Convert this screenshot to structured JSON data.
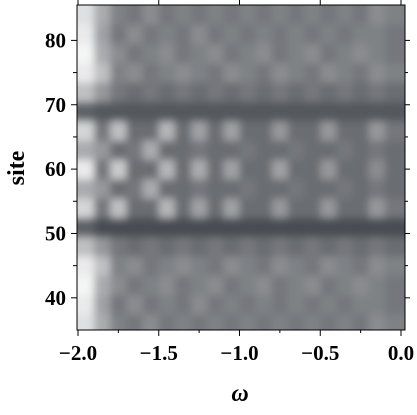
{
  "chart_data": {
    "type": "heatmap",
    "xlabel": "ω",
    "ylabel": "site",
    "xlim": [
      -2.0,
      0.0
    ],
    "ylim": [
      35,
      85.5
    ],
    "xticks": [
      {
        "value": -2.0,
        "label": "−2.0"
      },
      {
        "value": -1.5,
        "label": "−1.5"
      },
      {
        "value": -1.0,
        "label": "−1.0"
      },
      {
        "value": -0.5,
        "label": "−0.5"
      },
      {
        "value": 0.0,
        "label": "0.0"
      }
    ],
    "xminorticks": [
      -1.75,
      -1.25,
      -0.75,
      -0.25
    ],
    "yticks": [
      40,
      50,
      60,
      70,
      80
    ],
    "yminorticks": [
      45,
      55,
      65,
      75
    ],
    "x": [
      -1.95,
      -1.85,
      -1.75,
      -1.65,
      -1.55,
      -1.45,
      -1.35,
      -1.25,
      -1.15,
      -1.05,
      -0.95,
      -0.85,
      -0.75,
      -0.65,
      -0.55,
      -0.45,
      -0.35,
      -0.25,
      -0.15,
      -0.05
    ],
    "y": [
      36,
      39,
      42,
      45,
      48,
      51,
      54,
      57,
      60,
      63,
      66,
      69,
      72,
      75,
      78,
      81,
      84
    ],
    "zlim": [
      0,
      1
    ],
    "colors": [
      "#2a2e34",
      "#ffffff"
    ],
    "z": [
      [
        0.85,
        0.6,
        0.4,
        0.35,
        0.45,
        0.35,
        0.4,
        0.35,
        0.4,
        0.35,
        0.4,
        0.35,
        0.4,
        0.35,
        0.4,
        0.35,
        0.4,
        0.35,
        0.45,
        0.4
      ],
      [
        0.9,
        0.55,
        0.35,
        0.45,
        0.35,
        0.4,
        0.35,
        0.45,
        0.35,
        0.4,
        0.35,
        0.4,
        0.35,
        0.4,
        0.35,
        0.4,
        0.35,
        0.4,
        0.4,
        0.35
      ],
      [
        0.95,
        0.6,
        0.45,
        0.35,
        0.4,
        0.45,
        0.35,
        0.4,
        0.45,
        0.35,
        0.4,
        0.45,
        0.35,
        0.4,
        0.45,
        0.35,
        0.4,
        0.45,
        0.4,
        0.35
      ],
      [
        0.9,
        0.7,
        0.4,
        0.45,
        0.35,
        0.4,
        0.45,
        0.4,
        0.35,
        0.45,
        0.4,
        0.35,
        0.45,
        0.4,
        0.35,
        0.45,
        0.4,
        0.35,
        0.45,
        0.4
      ],
      [
        0.7,
        0.5,
        0.35,
        0.3,
        0.35,
        0.3,
        0.35,
        0.3,
        0.35,
        0.3,
        0.35,
        0.3,
        0.35,
        0.3,
        0.35,
        0.3,
        0.35,
        0.3,
        0.35,
        0.3
      ],
      [
        0.25,
        0.15,
        0.15,
        0.15,
        0.15,
        0.15,
        0.15,
        0.15,
        0.15,
        0.15,
        0.15,
        0.15,
        0.15,
        0.15,
        0.15,
        0.15,
        0.15,
        0.15,
        0.15,
        0.15
      ],
      [
        0.8,
        0.35,
        0.7,
        0.3,
        0.3,
        0.65,
        0.3,
        0.55,
        0.3,
        0.55,
        0.3,
        0.3,
        0.5,
        0.3,
        0.3,
        0.5,
        0.3,
        0.3,
        0.5,
        0.35
      ],
      [
        0.6,
        0.5,
        0.3,
        0.35,
        0.6,
        0.3,
        0.3,
        0.35,
        0.3,
        0.3,
        0.35,
        0.3,
        0.3,
        0.35,
        0.3,
        0.3,
        0.35,
        0.3,
        0.35,
        0.3
      ],
      [
        0.9,
        0.35,
        0.75,
        0.3,
        0.3,
        0.65,
        0.3,
        0.6,
        0.3,
        0.55,
        0.3,
        0.3,
        0.55,
        0.3,
        0.3,
        0.5,
        0.3,
        0.3,
        0.45,
        0.3
      ],
      [
        0.6,
        0.5,
        0.3,
        0.35,
        0.6,
        0.3,
        0.3,
        0.35,
        0.3,
        0.3,
        0.35,
        0.3,
        0.3,
        0.35,
        0.3,
        0.3,
        0.35,
        0.3,
        0.35,
        0.3
      ],
      [
        0.8,
        0.35,
        0.7,
        0.3,
        0.3,
        0.65,
        0.3,
        0.55,
        0.3,
        0.55,
        0.3,
        0.3,
        0.5,
        0.3,
        0.3,
        0.5,
        0.3,
        0.3,
        0.5,
        0.35
      ],
      [
        0.25,
        0.2,
        0.2,
        0.2,
        0.2,
        0.2,
        0.2,
        0.2,
        0.2,
        0.2,
        0.2,
        0.2,
        0.2,
        0.2,
        0.2,
        0.2,
        0.2,
        0.2,
        0.2,
        0.2
      ],
      [
        0.7,
        0.5,
        0.35,
        0.3,
        0.35,
        0.3,
        0.35,
        0.3,
        0.35,
        0.3,
        0.35,
        0.3,
        0.35,
        0.3,
        0.35,
        0.3,
        0.35,
        0.3,
        0.35,
        0.3
      ],
      [
        0.9,
        0.7,
        0.4,
        0.45,
        0.35,
        0.4,
        0.45,
        0.4,
        0.35,
        0.45,
        0.4,
        0.35,
        0.45,
        0.4,
        0.35,
        0.45,
        0.4,
        0.35,
        0.45,
        0.4
      ],
      [
        0.95,
        0.6,
        0.45,
        0.35,
        0.4,
        0.45,
        0.35,
        0.4,
        0.45,
        0.35,
        0.4,
        0.45,
        0.35,
        0.4,
        0.45,
        0.35,
        0.4,
        0.45,
        0.4,
        0.35
      ],
      [
        0.9,
        0.55,
        0.35,
        0.45,
        0.35,
        0.4,
        0.35,
        0.45,
        0.35,
        0.4,
        0.35,
        0.4,
        0.35,
        0.4,
        0.35,
        0.4,
        0.35,
        0.4,
        0.4,
        0.35
      ],
      [
        0.85,
        0.6,
        0.4,
        0.35,
        0.45,
        0.35,
        0.4,
        0.35,
        0.4,
        0.35,
        0.4,
        0.35,
        0.4,
        0.35,
        0.4,
        0.35,
        0.4,
        0.35,
        0.45,
        0.4
      ]
    ]
  }
}
